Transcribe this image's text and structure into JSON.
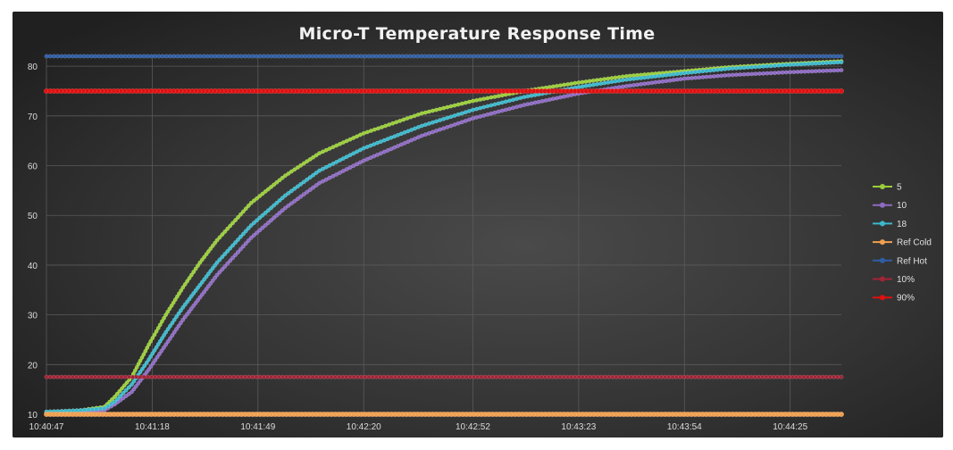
{
  "chart_data": {
    "type": "line",
    "title": "Micro-T Temperature Response Time",
    "xlabel": "",
    "ylabel": "",
    "x_ticks": [
      "10:40:47",
      "10:41:18",
      "10:41:49",
      "10:42:20",
      "10:42:52",
      "10:43:23",
      "10:43:54",
      "10:44:25"
    ],
    "x_tick_seconds": [
      0,
      31,
      62,
      93,
      125,
      156,
      187,
      218
    ],
    "xlim_seconds": [
      0,
      233
    ],
    "ylim": [
      10,
      82
    ],
    "y_ticks": [
      10,
      20,
      30,
      40,
      50,
      60,
      70,
      80
    ],
    "grid": true,
    "legend_position": "right",
    "series": [
      {
        "name": "5",
        "color": "#9acd3a",
        "x_seconds": [
          0,
          10,
          17,
          20,
          25,
          30,
          35,
          40,
          45,
          50,
          60,
          70,
          80,
          93,
          110,
          125,
          140,
          156,
          170,
          187,
          200,
          218,
          233
        ],
        "values": [
          10.5,
          10.8,
          11.5,
          13.5,
          17.5,
          24,
          30,
          35.5,
          40.5,
          45,
          52.5,
          58,
          62.5,
          66.5,
          70.5,
          73,
          75,
          76.7,
          78,
          79,
          79.8,
          80.5,
          81
        ]
      },
      {
        "name": "10",
        "color": "#8e6bc4",
        "x_seconds": [
          0,
          10,
          17,
          20,
          25,
          30,
          35,
          40,
          45,
          50,
          60,
          70,
          80,
          93,
          110,
          125,
          140,
          156,
          170,
          187,
          200,
          218,
          233
        ],
        "values": [
          10.3,
          10.5,
          10.8,
          12,
          14.5,
          19,
          24,
          29,
          33.5,
          38,
          45.5,
          51.5,
          56.5,
          61,
          66,
          69.5,
          72.2,
          74.5,
          76,
          77.5,
          78.2,
          78.8,
          79.2
        ]
      },
      {
        "name": "18",
        "color": "#3cb8cc",
        "x_seconds": [
          0,
          10,
          17,
          20,
          25,
          30,
          35,
          40,
          45,
          50,
          60,
          70,
          80,
          93,
          110,
          125,
          140,
          156,
          170,
          187,
          200,
          218,
          233
        ],
        "values": [
          10.5,
          10.8,
          11.2,
          12.5,
          16,
          21,
          26.5,
          31.5,
          36,
          40.5,
          48,
          54,
          59,
          63.5,
          68,
          71.2,
          73.8,
          75.8,
          77.3,
          78.6,
          79.5,
          80.3,
          80.8
        ]
      },
      {
        "name": "Ref Cold",
        "color": "#f0a050",
        "x_seconds": [
          0,
          233
        ],
        "values": [
          10,
          10
        ]
      },
      {
        "name": "Ref Hot",
        "color": "#2e5ea6",
        "x_seconds": [
          0,
          233
        ],
        "values": [
          82,
          82
        ]
      },
      {
        "name": "10%",
        "color": "#a22436",
        "x_seconds": [
          0,
          233
        ],
        "values": [
          17.5,
          17.5
        ]
      },
      {
        "name": "90%",
        "color": "#e01010",
        "x_seconds": [
          0,
          233
        ],
        "values": [
          75,
          75
        ]
      }
    ]
  }
}
